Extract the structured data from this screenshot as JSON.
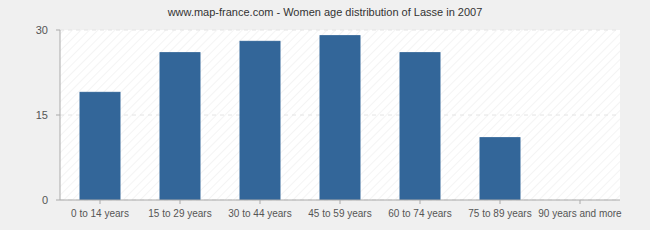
{
  "chart_data": {
    "type": "bar",
    "title": "www.map-france.com - Women age distribution of Lasse in 2007",
    "categories": [
      "0 to 14 years",
      "15 to 29 years",
      "30 to 44 years",
      "45 to 59 years",
      "60 to 74 years",
      "75 to 89 years",
      "90 years and more"
    ],
    "values": [
      19,
      26,
      28,
      29,
      26,
      11,
      0
    ],
    "color": "#336699",
    "ylim": [
      0,
      30
    ],
    "yticks": [
      0,
      15,
      30
    ],
    "grid": true
  }
}
